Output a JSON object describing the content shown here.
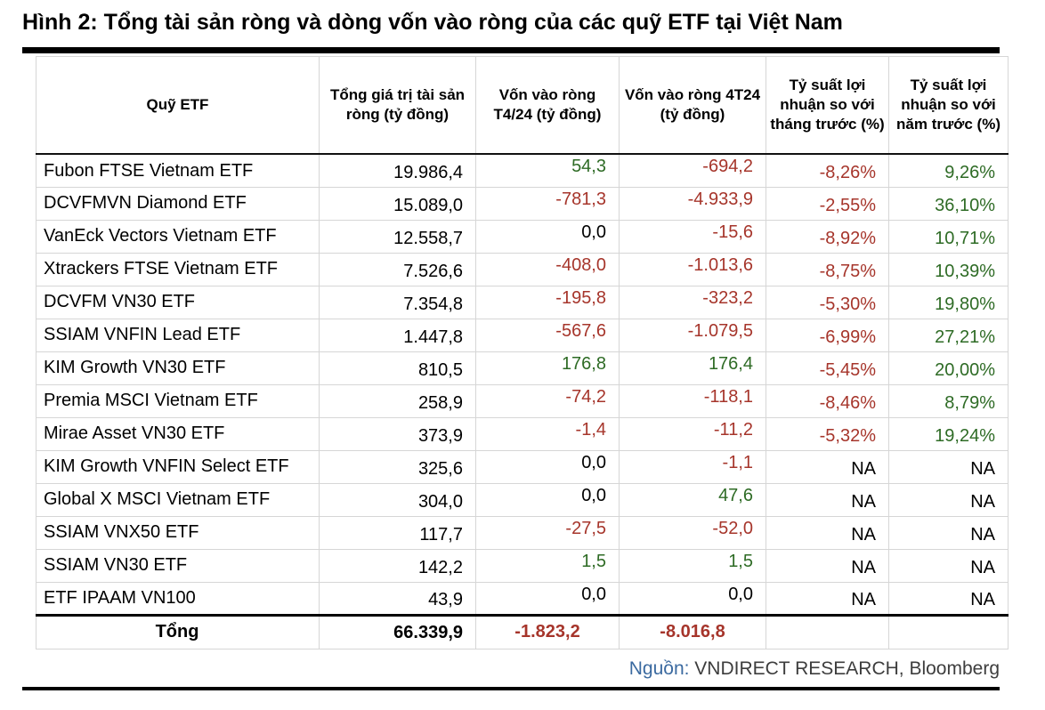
{
  "title": "Hình 2: Tổng tài sản ròng và dòng vốn vào ròng của các quỹ ETF tại Việt Nam",
  "source": {
    "label": "Nguồn:",
    "text": " VNDIRECT RESEARCH, Bloomberg"
  },
  "colors": {
    "positive_bg": "#d9ead3",
    "positive_text": "#2e6b25",
    "negative_bg": "#f4cccc",
    "negative_text": "#a6352b",
    "rule": "#000000",
    "source_label": "#3b6aa0"
  },
  "table": {
    "headers": [
      "Quỹ ETF",
      "Tổng giá trị tài sản ròng (tỷ đồng)",
      "Vốn vào ròng T4/24 (tỷ đồng)",
      "Vốn vào ròng 4T24 (tỷ đồng)",
      "Tỷ suất lợi nhuận so với tháng trước (%)",
      "Tỷ suất lợi nhuận so với năm trước (%)"
    ],
    "rows": [
      {
        "fund": "Fubon FTSE Vietnam ETF",
        "nav": "19.986,4",
        "flow_apr": {
          "v": "54,3",
          "s": "pos"
        },
        "flow_4m": {
          "v": "-694,2",
          "s": "neg"
        },
        "ret_mom": {
          "v": "-8,26%",
          "s": "neg"
        },
        "ret_yoy": {
          "v": "9,26%",
          "s": "pos"
        }
      },
      {
        "fund": "DCVFMVN Diamond ETF",
        "nav": "15.089,0",
        "flow_apr": {
          "v": "-781,3",
          "s": "neg"
        },
        "flow_4m": {
          "v": "-4.933,9",
          "s": "neg"
        },
        "ret_mom": {
          "v": "-2,55%",
          "s": "neg"
        },
        "ret_yoy": {
          "v": "36,10%",
          "s": "pos"
        }
      },
      {
        "fund": "VanEck Vectors Vietnam ETF",
        "nav": "12.558,7",
        "flow_apr": {
          "v": "0,0",
          "s": "zero"
        },
        "flow_4m": {
          "v": "-15,6",
          "s": "neg"
        },
        "ret_mom": {
          "v": "-8,92%",
          "s": "neg"
        },
        "ret_yoy": {
          "v": "10,71%",
          "s": "pos"
        }
      },
      {
        "fund": "Xtrackers FTSE Vietnam ETF",
        "nav": "7.526,6",
        "flow_apr": {
          "v": "-408,0",
          "s": "neg"
        },
        "flow_4m": {
          "v": "-1.013,6",
          "s": "neg"
        },
        "ret_mom": {
          "v": "-8,75%",
          "s": "neg"
        },
        "ret_yoy": {
          "v": "10,39%",
          "s": "pos"
        }
      },
      {
        "fund": "DCVFM VN30 ETF",
        "nav": "7.354,8",
        "flow_apr": {
          "v": "-195,8",
          "s": "neg"
        },
        "flow_4m": {
          "v": "-323,2",
          "s": "neg"
        },
        "ret_mom": {
          "v": "-5,30%",
          "s": "neg"
        },
        "ret_yoy": {
          "v": "19,80%",
          "s": "pos"
        }
      },
      {
        "fund": "SSIAM VNFIN Lead ETF",
        "nav": "1.447,8",
        "flow_apr": {
          "v": "-567,6",
          "s": "neg"
        },
        "flow_4m": {
          "v": "-1.079,5",
          "s": "neg"
        },
        "ret_mom": {
          "v": "-6,99%",
          "s": "neg"
        },
        "ret_yoy": {
          "v": "27,21%",
          "s": "pos"
        }
      },
      {
        "fund": "KIM Growth VN30 ETF",
        "nav": "810,5",
        "flow_apr": {
          "v": "176,8",
          "s": "pos"
        },
        "flow_4m": {
          "v": "176,4",
          "s": "pos"
        },
        "ret_mom": {
          "v": "-5,45%",
          "s": "neg"
        },
        "ret_yoy": {
          "v": "20,00%",
          "s": "pos"
        }
      },
      {
        "fund": "Premia MSCI Vietnam ETF",
        "nav": "258,9",
        "flow_apr": {
          "v": "-74,2",
          "s": "neg"
        },
        "flow_4m": {
          "v": "-118,1",
          "s": "neg"
        },
        "ret_mom": {
          "v": "-8,46%",
          "s": "neg"
        },
        "ret_yoy": {
          "v": "8,79%",
          "s": "pos"
        }
      },
      {
        "fund": "Mirae Asset VN30 ETF",
        "nav": "373,9",
        "flow_apr": {
          "v": "-1,4",
          "s": "neg"
        },
        "flow_4m": {
          "v": "-11,2",
          "s": "neg"
        },
        "ret_mom": {
          "v": "-5,32%",
          "s": "neg"
        },
        "ret_yoy": {
          "v": "19,24%",
          "s": "pos"
        }
      },
      {
        "fund": "KIM Growth VNFIN Select ETF",
        "nav": "325,6",
        "flow_apr": {
          "v": "0,0",
          "s": "zero"
        },
        "flow_4m": {
          "v": "-1,1",
          "s": "neg"
        },
        "ret_mom": {
          "v": "NA",
          "s": "na"
        },
        "ret_yoy": {
          "v": "NA",
          "s": "na"
        }
      },
      {
        "fund": "Global X MSCI Vietnam ETF",
        "nav": "304,0",
        "flow_apr": {
          "v": "0,0",
          "s": "zero"
        },
        "flow_4m": {
          "v": "47,6",
          "s": "pos"
        },
        "ret_mom": {
          "v": "NA",
          "s": "na"
        },
        "ret_yoy": {
          "v": "NA",
          "s": "na"
        }
      },
      {
        "fund": "SSIAM VNX50 ETF",
        "nav": "117,7",
        "flow_apr": {
          "v": "-27,5",
          "s": "neg"
        },
        "flow_4m": {
          "v": "-52,0",
          "s": "neg"
        },
        "ret_mom": {
          "v": "NA",
          "s": "na"
        },
        "ret_yoy": {
          "v": "NA",
          "s": "na"
        }
      },
      {
        "fund": "SSIAM VN30 ETF",
        "nav": "142,2",
        "flow_apr": {
          "v": "1,5",
          "s": "pos"
        },
        "flow_4m": {
          "v": "1,5",
          "s": "pos"
        },
        "ret_mom": {
          "v": "NA",
          "s": "na"
        },
        "ret_yoy": {
          "v": "NA",
          "s": "na"
        }
      },
      {
        "fund": "ETF IPAAM VN100",
        "nav": "43,9",
        "flow_apr": {
          "v": "0,0",
          "s": "zero"
        },
        "flow_4m": {
          "v": "0,0",
          "s": "zero"
        },
        "ret_mom": {
          "v": "NA",
          "s": "na"
        },
        "ret_yoy": {
          "v": "NA",
          "s": "na"
        }
      }
    ],
    "total": {
      "fund": "Tổng",
      "nav": "66.339,9",
      "flow_apr": {
        "v": "-1.823,2",
        "s": "neg"
      },
      "flow_4m": {
        "v": "-8.016,8",
        "s": "neg"
      },
      "ret_mom": {
        "v": "",
        "s": "na"
      },
      "ret_yoy": {
        "v": "",
        "s": "na"
      }
    }
  },
  "chart_data": {
    "type": "table",
    "title": "Hình 2: Tổng tài sản ròng và dòng vốn vào ròng của các quỹ ETF tại Việt Nam",
    "columns": [
      "Quỹ ETF",
      "Tổng giá trị tài sản ròng (tỷ đồng)",
      "Vốn vào ròng T4/24 (tỷ đồng)",
      "Vốn vào ròng 4T24 (tỷ đồng)",
      "Tỷ suất lợi nhuận so với tháng trước (%)",
      "Tỷ suất lợi nhuận so với năm trước (%)"
    ],
    "rows": [
      [
        "Fubon FTSE Vietnam ETF",
        19986.4,
        54.3,
        -694.2,
        -8.26,
        9.26
      ],
      [
        "DCVFMVN Diamond ETF",
        15089.0,
        -781.3,
        -4933.9,
        -2.55,
        36.1
      ],
      [
        "VanEck Vectors Vietnam ETF",
        12558.7,
        0.0,
        -15.6,
        -8.92,
        10.71
      ],
      [
        "Xtrackers FTSE Vietnam ETF",
        7526.6,
        -408.0,
        -1013.6,
        -8.75,
        10.39
      ],
      [
        "DCVFM VN30 ETF",
        7354.8,
        -195.8,
        -323.2,
        -5.3,
        19.8
      ],
      [
        "SSIAM VNFIN Lead ETF",
        1447.8,
        -567.6,
        -1079.5,
        -6.99,
        27.21
      ],
      [
        "KIM Growth VN30 ETF",
        810.5,
        176.8,
        176.4,
        -5.45,
        20.0
      ],
      [
        "Premia MSCI Vietnam ETF",
        258.9,
        -74.2,
        -118.1,
        -8.46,
        8.79
      ],
      [
        "Mirae Asset VN30 ETF",
        373.9,
        -1.4,
        -11.2,
        -5.32,
        19.24
      ],
      [
        "KIM Growth VNFIN Select ETF",
        325.6,
        0.0,
        -1.1,
        null,
        null
      ],
      [
        "Global X MSCI Vietnam ETF",
        304.0,
        0.0,
        47.6,
        null,
        null
      ],
      [
        "SSIAM VNX50 ETF",
        117.7,
        -27.5,
        -52.0,
        null,
        null
      ],
      [
        "SSIAM VN30 ETF",
        142.2,
        1.5,
        1.5,
        null,
        null
      ],
      [
        "ETF IPAAM VN100",
        43.9,
        0.0,
        0.0,
        null,
        null
      ]
    ],
    "total_row": [
      "Tổng",
      66339.9,
      -1823.2,
      -8016.8,
      null,
      null
    ],
    "source": "Nguồn: VNDIRECT RESEARCH, Bloomberg",
    "notes": "Negative values shaded light red with dark red text; positive flow/return values shaded light green with dark green text; NA/zero cells white."
  }
}
